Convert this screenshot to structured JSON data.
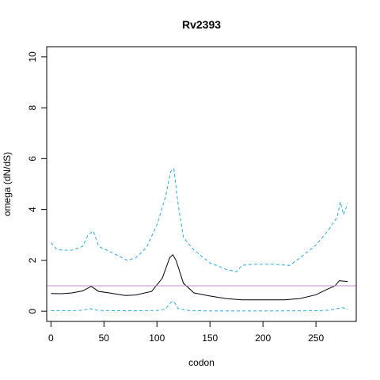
{
  "chart_data": {
    "type": "line",
    "title": "Rv2393",
    "xlabel": "codon",
    "ylabel": "omega (dN/dS)",
    "xlim": [
      -4,
      288
    ],
    "ylim": [
      -0.4,
      10.4
    ],
    "x_ticks": [
      0,
      50,
      100,
      150,
      200,
      250
    ],
    "y_ticks": [
      0,
      2,
      4,
      6,
      8,
      10
    ],
    "grid": false,
    "colors": {
      "mean": "#000000",
      "ci": "#29a8e0",
      "reference": "#c88cc8"
    },
    "reference_line": {
      "y": 1
    },
    "series": [
      {
        "style": "solid",
        "color": "#000000",
        "x": [
          0,
          10,
          20,
          30,
          38,
          45,
          55,
          70,
          80,
          95,
          105,
          112,
          115,
          118,
          125,
          135,
          150,
          165,
          180,
          200,
          220,
          235,
          250,
          260,
          268,
          272,
          280
        ],
        "y": [
          0.7,
          0.69,
          0.72,
          0.8,
          0.98,
          0.78,
          0.72,
          0.62,
          0.64,
          0.78,
          1.3,
          2.1,
          2.22,
          2.0,
          1.1,
          0.72,
          0.6,
          0.5,
          0.45,
          0.45,
          0.45,
          0.5,
          0.65,
          0.85,
          1.0,
          1.2,
          1.17
        ]
      },
      {
        "style": "dashed",
        "color": "#29a8e0",
        "x": [
          0,
          5,
          10,
          20,
          30,
          35,
          40,
          45,
          55,
          65,
          72,
          80,
          90,
          100,
          108,
          113,
          116,
          120,
          125,
          135,
          150,
          165,
          175,
          180,
          190,
          210,
          225,
          235,
          250,
          262,
          270,
          273,
          276,
          280
        ],
        "y": [
          2.7,
          2.45,
          2.4,
          2.4,
          2.55,
          3.0,
          3.15,
          2.55,
          2.35,
          2.15,
          2.0,
          2.1,
          2.5,
          3.4,
          4.5,
          5.5,
          5.6,
          4.2,
          2.9,
          2.4,
          1.9,
          1.65,
          1.55,
          1.8,
          1.85,
          1.85,
          1.8,
          2.1,
          2.6,
          3.2,
          3.7,
          4.3,
          3.8,
          4.25
        ]
      },
      {
        "style": "dashed",
        "color": "#29a8e0",
        "x": [
          0,
          20,
          30,
          37,
          45,
          60,
          80,
          100,
          108,
          113,
          116,
          120,
          130,
          150,
          200,
          250,
          262,
          270,
          275,
          280
        ],
        "y": [
          0.02,
          0.02,
          0.04,
          0.1,
          0.03,
          0.02,
          0.02,
          0.03,
          0.08,
          0.35,
          0.38,
          0.1,
          0.03,
          0.01,
          0.01,
          0.02,
          0.04,
          0.1,
          0.14,
          0.08
        ]
      }
    ]
  }
}
